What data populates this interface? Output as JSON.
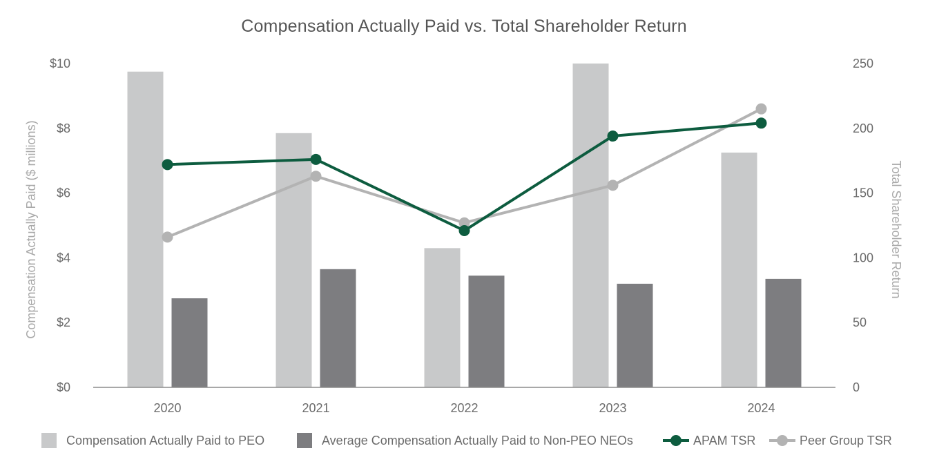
{
  "chart_data": {
    "type": "bar",
    "title": "Compensation Actually Paid vs. Total Shareholder Return",
    "categories": [
      "2020",
      "2021",
      "2022",
      "2023",
      "2024"
    ],
    "xlabel": "",
    "ylabel": "Compensation Actually Paid ($ millions)",
    "ylabel_right": "Total Shareholder Return",
    "ylim": [
      0,
      10
    ],
    "ylim_right": [
      0,
      250
    ],
    "yticks": [
      "$0",
      "$2",
      "$4",
      "$6",
      "$8",
      "$10"
    ],
    "yticks_right": [
      "0",
      "50",
      "100",
      "150",
      "200",
      "250"
    ],
    "series": [
      {
        "name": "Compensation Actually Paid to PEO",
        "kind": "bar",
        "axis": "left",
        "color": "#c8c9ca",
        "values": [
          9.75,
          7.85,
          4.3,
          10.0,
          7.25
        ]
      },
      {
        "name": "Average Compensation Actually Paid to Non-PEO NEOs",
        "kind": "bar",
        "axis": "left",
        "color": "#7d7d80",
        "values": [
          2.75,
          3.65,
          3.45,
          3.2,
          3.35
        ]
      },
      {
        "name": "APAM TSR",
        "kind": "line",
        "axis": "right",
        "color": "#0d5c3f",
        "values": [
          172,
          176,
          121,
          194,
          204
        ]
      },
      {
        "name": "Peer Group TSR",
        "kind": "line",
        "axis": "right",
        "color": "#b3b3b3",
        "values": [
          116,
          163,
          127,
          156,
          215
        ]
      }
    ],
    "legend_position": "bottom"
  }
}
